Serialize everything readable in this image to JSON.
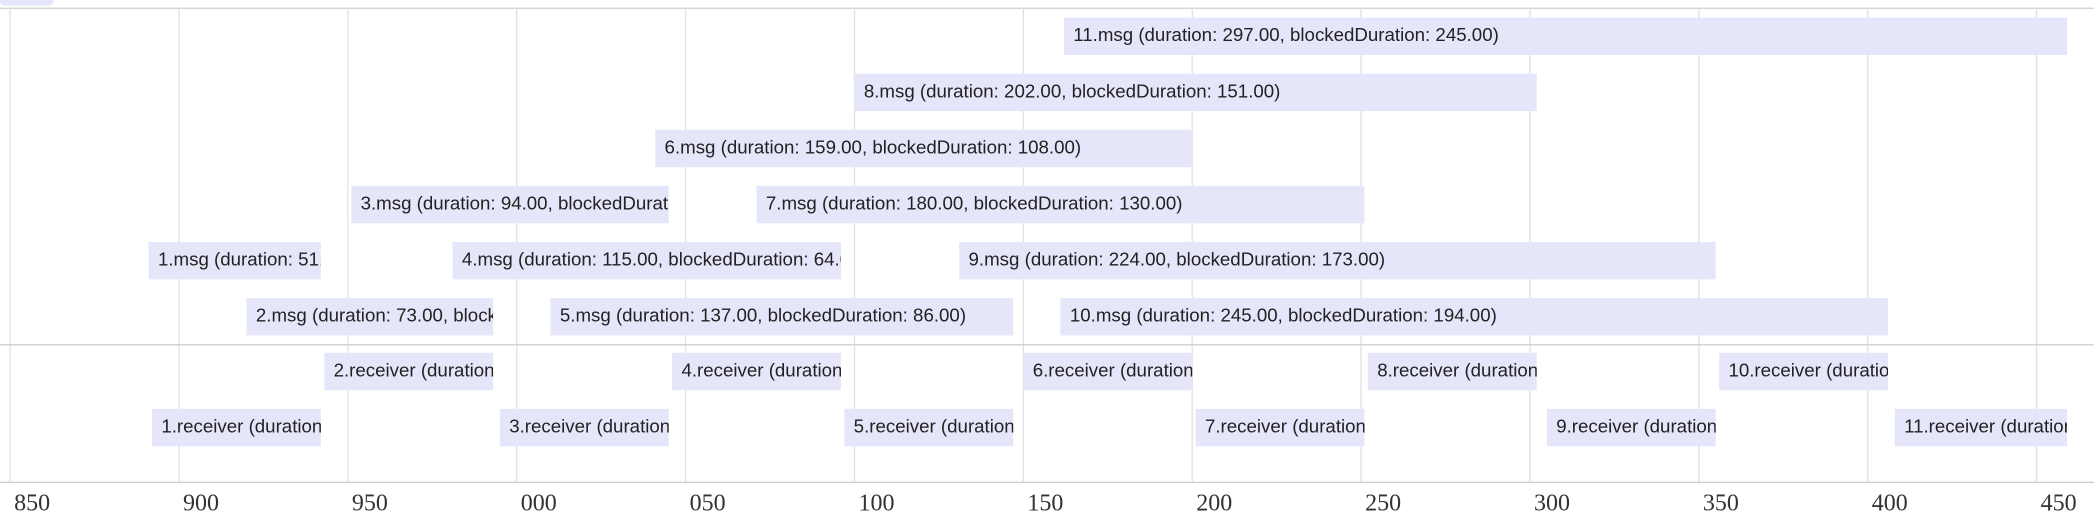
{
  "chart_data": {
    "type": "timeline",
    "color": "#e6e6fa",
    "grid": true,
    "xlim": [
      847,
      1467
    ],
    "xticks": [
      850,
      900,
      950,
      {
        "value": 1000,
        "label": "000"
      },
      {
        "value": 1050,
        "label": "050"
      },
      {
        "value": 1100,
        "label": "100"
      },
      {
        "value": 1150,
        "label": "150"
      },
      {
        "value": 1200,
        "label": "200"
      },
      {
        "value": 1250,
        "label": "250"
      },
      {
        "value": 1300,
        "label": "300"
      },
      {
        "value": 1350,
        "label": "350"
      },
      {
        "value": 1400,
        "label": "400"
      },
      {
        "value": 1450,
        "label": "450"
      }
    ],
    "groups": [
      {
        "rows": [
          [
            {
              "label": "11.msg (duration: 297.00, blockedDuration: 245.00)",
              "start": 1162,
              "end": 1459
            }
          ],
          [
            {
              "label": "8.msg (duration: 202.00, blockedDuration: 151.00)",
              "start": 1100,
              "end": 1302
            }
          ],
          [
            {
              "label": "6.msg (duration: 159.00, blockedDuration: 108.00)",
              "start": 1041,
              "end": 1200
            }
          ],
          [
            {
              "label": "3.msg (duration: 94.00, blockedDuratio",
              "start": 951,
              "end": 1045
            },
            {
              "label": "7.msg (duration: 180.00, blockedDuration: 130.00)",
              "start": 1071,
              "end": 1251
            }
          ],
          [
            {
              "label": "1.msg (duration: 51.",
              "start": 891,
              "end": 942
            },
            {
              "label": "4.msg (duration: 115.00, blockedDuration: 64.0",
              "start": 981,
              "end": 1096
            },
            {
              "label": "9.msg (duration: 224.00, blockedDuration: 173.00)",
              "start": 1131,
              "end": 1355
            }
          ],
          [
            {
              "label": "2.msg (duration: 73.00, blocke",
              "start": 920,
              "end": 993
            },
            {
              "label": "5.msg (duration: 137.00, blockedDuration: 86.00)",
              "start": 1010,
              "end": 1147
            },
            {
              "label": "10.msg (duration: 245.00, blockedDuration: 194.00)",
              "start": 1161,
              "end": 1406
            }
          ]
        ]
      },
      {
        "rows": [
          [
            {
              "label": "2.receiver (duration:",
              "start": 943,
              "end": 993
            },
            {
              "label": "4.receiver (duration",
              "start": 1046,
              "end": 1096
            },
            {
              "label": "6.receiver (duration",
              "start": 1150,
              "end": 1200
            },
            {
              "label": "8.receiver (duration:",
              "start": 1252,
              "end": 1302
            },
            {
              "label": "10.receiver (duratio",
              "start": 1356,
              "end": 1406
            }
          ],
          [
            {
              "label": "1.receiver (duration",
              "start": 892,
              "end": 942
            },
            {
              "label": "3.receiver (duration",
              "start": 995,
              "end": 1045
            },
            {
              "label": "5.receiver (duration:",
              "start": 1097,
              "end": 1147
            },
            {
              "label": "7.receiver (duration",
              "start": 1201,
              "end": 1251
            },
            {
              "label": "9.receiver (duration",
              "start": 1305,
              "end": 1355
            },
            {
              "label": "11.receiver (duration",
              "start": 1408,
              "end": 1459
            }
          ]
        ]
      }
    ]
  }
}
